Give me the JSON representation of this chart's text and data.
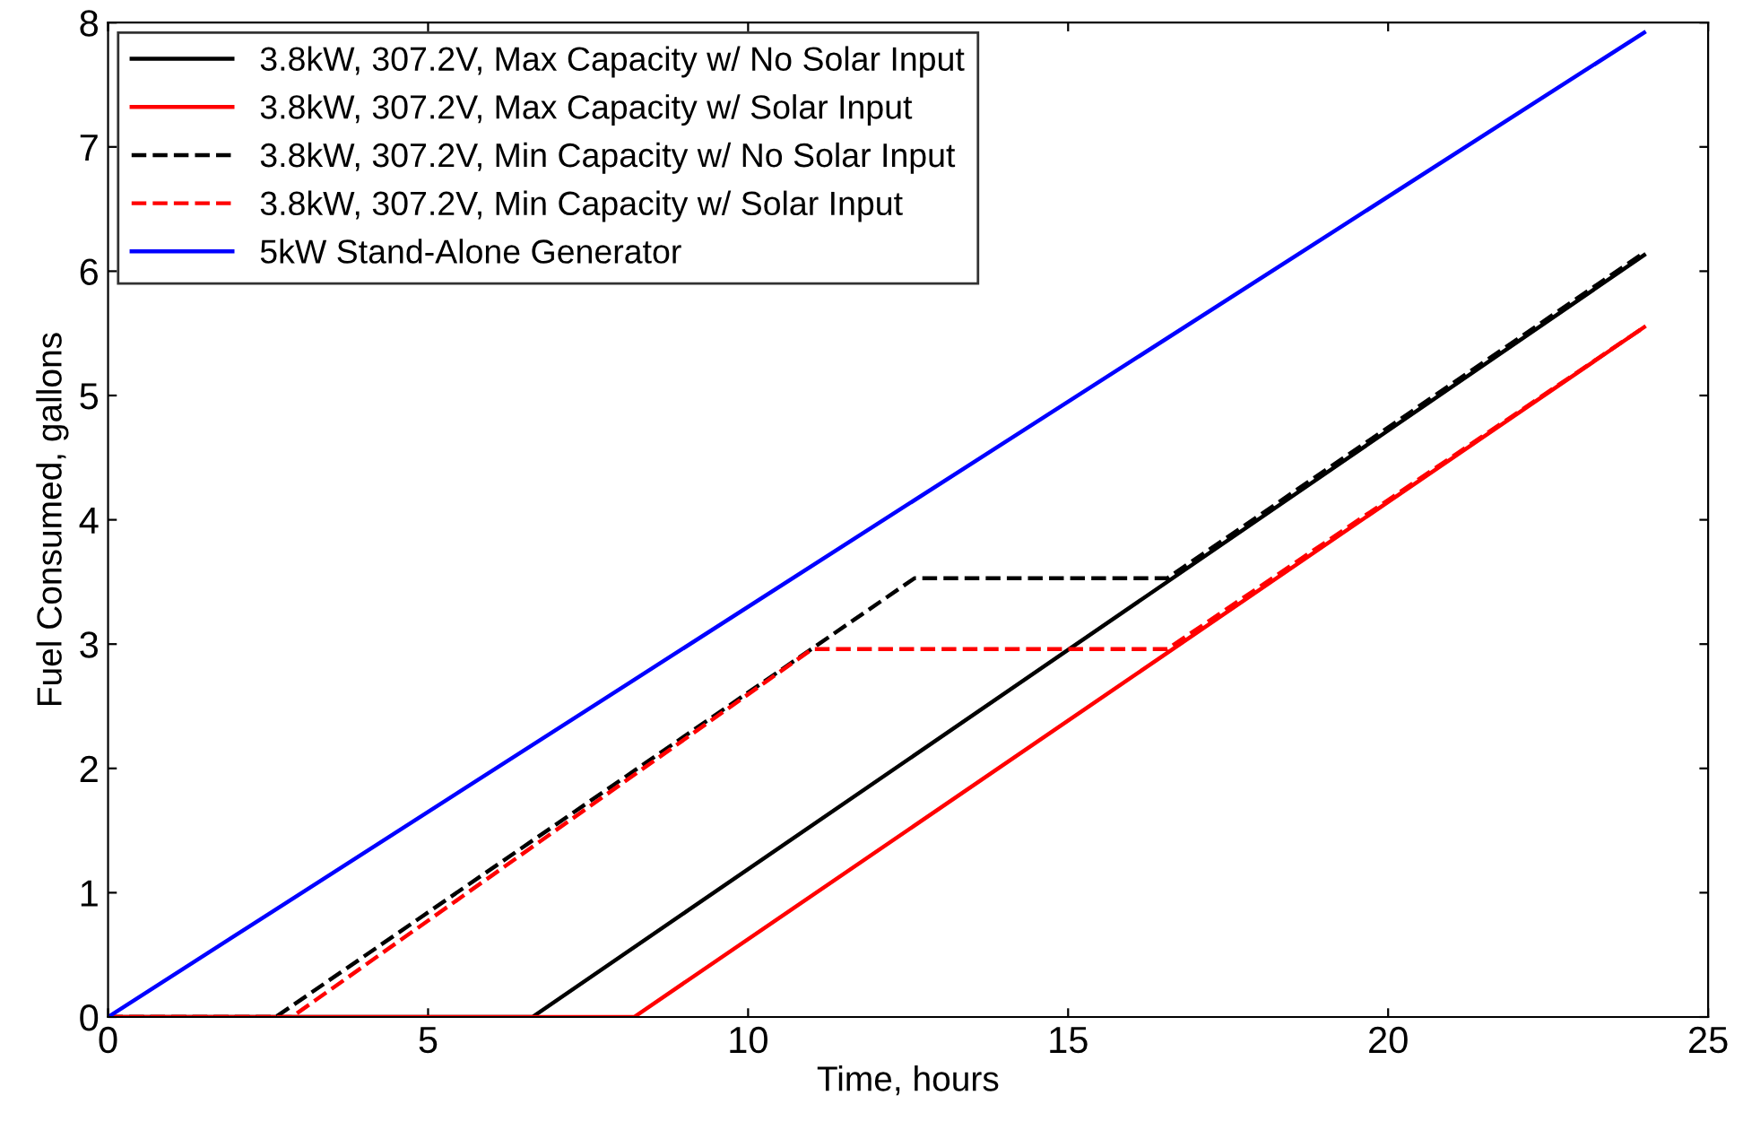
{
  "chart_data": {
    "type": "line",
    "xlabel": "Time, hours",
    "ylabel": "Fuel Consumed, gallons",
    "series": [
      {
        "name": "3.8kW, 307.2V, Max Capacity w/ No Solar Input",
        "color": "#000000",
        "line_style": "solid",
        "x": [
          0,
          6.63,
          24
        ],
        "values": [
          0,
          0,
          6.13
        ]
      },
      {
        "name": "3.8kW, 307.2V, Max Capacity w/ Solar Input",
        "color": "#ff0000",
        "line_style": "solid",
        "x": [
          0,
          8.22,
          24
        ],
        "values": [
          0,
          0,
          5.55
        ]
      },
      {
        "name": "3.8kW, 307.2V, Min Capacity w/ No Solar Input",
        "color": "#000000",
        "line_style": "dashed",
        "x": [
          0,
          2.62,
          12.6,
          16.55,
          24
        ],
        "values": [
          0,
          0,
          3.53,
          3.53,
          6.15
        ]
      },
      {
        "name": "3.8kW, 307.2V, Min Capacity w/ Solar Input",
        "color": "#ff0000",
        "line_style": "dashed",
        "x": [
          0,
          2.87,
          11.0,
          16.55,
          24
        ],
        "values": [
          0,
          0,
          2.96,
          2.96,
          5.55
        ]
      },
      {
        "name": "5kW Stand-Alone Generator",
        "color": "#0000ff",
        "line_style": "solid",
        "x": [
          0,
          24
        ],
        "values": [
          0,
          7.92
        ]
      }
    ],
    "xlim": [
      0,
      25
    ],
    "ylim": [
      0,
      8
    ],
    "xticks": [
      0,
      5,
      10,
      15,
      20,
      25
    ],
    "yticks": [
      0,
      1,
      2,
      3,
      4,
      5,
      6,
      7,
      8
    ],
    "grid": false,
    "legend": "top left",
    "marker": "none"
  }
}
